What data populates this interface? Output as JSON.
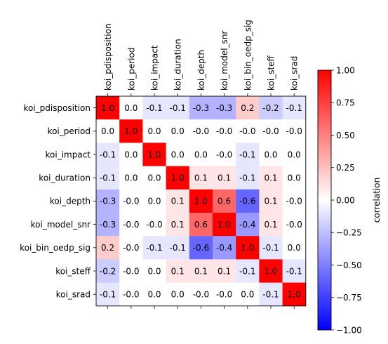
{
  "chart_data": {
    "type": "heatmap",
    "title": "",
    "xlabel": "",
    "ylabel": "",
    "x_tick_position": "top",
    "grid": false,
    "variables": [
      "koi_pdisposition",
      "koi_period",
      "koi_impact",
      "koi_duration",
      "koi_depth",
      "koi_model_snr",
      "koi_bin_oedp_sig",
      "koi_steff",
      "koi_srad"
    ],
    "matrix": [
      [
        1.0,
        0.0,
        -0.1,
        -0.1,
        -0.3,
        -0.3,
        0.2,
        -0.2,
        -0.1
      ],
      [
        0.0,
        1.0,
        0.0,
        0.0,
        -0.0,
        -0.0,
        -0.0,
        -0.0,
        -0.0
      ],
      [
        -0.1,
        0.0,
        1.0,
        0.0,
        0.0,
        -0.0,
        -0.1,
        0.0,
        0.0
      ],
      [
        -0.1,
        0.0,
        0.0,
        1.0,
        0.1,
        0.1,
        -0.1,
        0.1,
        0.0
      ],
      [
        -0.3,
        -0.0,
        0.0,
        0.1,
        1.0,
        0.6,
        -0.6,
        0.1,
        -0.0
      ],
      [
        -0.3,
        -0.0,
        -0.0,
        0.1,
        0.6,
        1.0,
        -0.4,
        0.1,
        -0.0
      ],
      [
        0.2,
        -0.0,
        -0.1,
        -0.1,
        -0.6,
        -0.4,
        1.0,
        -0.1,
        0.0
      ],
      [
        -0.2,
        -0.0,
        0.0,
        0.1,
        0.1,
        0.1,
        -0.1,
        1.0,
        -0.1
      ],
      [
        -0.1,
        -0.0,
        0.0,
        0.0,
        -0.0,
        -0.0,
        0.0,
        -0.1,
        1.0
      ]
    ],
    "cell_labels": [
      [
        "1.0",
        "0.0",
        "-0.1",
        "-0.1",
        "-0.3",
        "-0.3",
        "0.2",
        "-0.2",
        "-0.1"
      ],
      [
        "0.0",
        "1.0",
        "0.0",
        "0.0",
        "-0.0",
        "-0.0",
        "-0.0",
        "-0.0",
        "-0.0"
      ],
      [
        "-0.1",
        "0.0",
        "1.0",
        "0.0",
        "0.0",
        "-0.0",
        "-0.1",
        "0.0",
        "0.0"
      ],
      [
        "-0.1",
        "0.0",
        "0.0",
        "1.0",
        "0.1",
        "0.1",
        "-0.1",
        "0.1",
        "0.0"
      ],
      [
        "-0.3",
        "-0.0",
        "0.0",
        "0.1",
        "1.0",
        "0.6",
        "-0.6",
        "0.1",
        "-0.0"
      ],
      [
        "-0.3",
        "-0.0",
        "-0.0",
        "0.1",
        "0.6",
        "1.0",
        "-0.4",
        "0.1",
        "-0.0"
      ],
      [
        "0.2",
        "-0.0",
        "-0.1",
        "-0.1",
        "-0.6",
        "-0.4",
        "1.0",
        "-0.1",
        "0.0"
      ],
      [
        "-0.2",
        "-0.0",
        "0.0",
        "0.1",
        "0.1",
        "0.1",
        "-0.1",
        "1.0",
        "-0.1"
      ],
      [
        "-0.1",
        "-0.0",
        "0.0",
        "0.0",
        "-0.0",
        "-0.0",
        "0.0",
        "-0.1",
        "1.0"
      ]
    ],
    "colormap": {
      "name": "bwr",
      "low": "#0000ff",
      "mid": "#ffffff",
      "high": "#ff0000"
    },
    "value_range": [
      -1.0,
      1.0
    ],
    "colorbar": {
      "label": "correlation",
      "ticks": [
        1.0,
        0.75,
        0.5,
        0.25,
        0.0,
        -0.25,
        -0.5,
        -0.75,
        -1.0
      ],
      "tick_labels": [
        "1.00",
        "0.75",
        "0.50",
        "0.25",
        "0.00",
        "−0.25",
        "−0.50",
        "−0.75",
        "−1.00"
      ]
    }
  }
}
